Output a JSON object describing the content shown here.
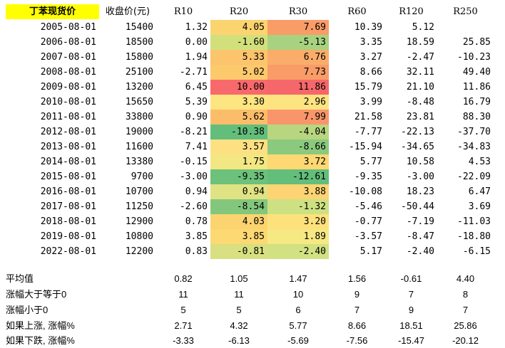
{
  "header": {
    "title": "丁苯现货价",
    "price_label": "收盘价(元)",
    "columns": [
      "R10",
      "R20",
      "R30",
      "R60",
      "R120",
      "R250"
    ]
  },
  "rows": [
    {
      "date": "2005-08-01",
      "price": "15400",
      "vals": [
        "1.32",
        "4.05",
        "7.69",
        "10.39",
        "5.12",
        ""
      ]
    },
    {
      "date": "2006-08-01",
      "price": "18500",
      "vals": [
        "0.00",
        "-1.60",
        "-5.13",
        "3.35",
        "18.59",
        "25.85"
      ]
    },
    {
      "date": "2007-08-01",
      "price": "15800",
      "vals": [
        "1.94",
        "5.33",
        "6.76",
        "3.27",
        "-2.47",
        "-10.23"
      ]
    },
    {
      "date": "2008-08-01",
      "price": "25100",
      "vals": [
        "-2.71",
        "5.02",
        "7.73",
        "8.66",
        "32.11",
        "49.40"
      ]
    },
    {
      "date": "2009-08-01",
      "price": "13200",
      "vals": [
        "6.45",
        "10.00",
        "11.86",
        "15.79",
        "21.10",
        "11.86"
      ]
    },
    {
      "date": "2010-08-01",
      "price": "15650",
      "vals": [
        "5.39",
        "3.30",
        "2.96",
        "3.99",
        "-8.48",
        "16.79"
      ]
    },
    {
      "date": "2011-08-01",
      "price": "33800",
      "vals": [
        "0.90",
        "5.62",
        "7.99",
        "21.58",
        "23.81",
        "88.30"
      ]
    },
    {
      "date": "2012-08-01",
      "price": "19000",
      "vals": [
        "-8.21",
        "-10.38",
        "-4.04",
        "-7.77",
        "-22.13",
        "-37.70"
      ]
    },
    {
      "date": "2013-08-01",
      "price": "11600",
      "vals": [
        "7.41",
        "3.57",
        "-8.66",
        "-15.94",
        "-34.65",
        "-34.83"
      ]
    },
    {
      "date": "2014-08-01",
      "price": "13380",
      "vals": [
        "-0.15",
        "1.75",
        "3.72",
        "5.77",
        "10.58",
        "4.53"
      ]
    },
    {
      "date": "2015-08-01",
      "price": "9700",
      "vals": [
        "-3.00",
        "-9.35",
        "-12.61",
        "-9.35",
        "-3.00",
        "-22.09"
      ]
    },
    {
      "date": "2016-08-01",
      "price": "10700",
      "vals": [
        "0.94",
        "0.94",
        "3.88",
        "-10.08",
        "18.23",
        "6.47"
      ]
    },
    {
      "date": "2017-08-01",
      "price": "11250",
      "vals": [
        "-2.60",
        "-8.54",
        "-1.32",
        "-5.46",
        "-50.44",
        "3.69"
      ]
    },
    {
      "date": "2018-08-01",
      "price": "12900",
      "vals": [
        "0.78",
        "4.03",
        "3.20",
        "-0.77",
        "-7.19",
        "-11.03"
      ]
    },
    {
      "date": "2019-08-01",
      "price": "10800",
      "vals": [
        "3.85",
        "3.85",
        "1.89",
        "-3.57",
        "-8.47",
        "-18.80"
      ]
    },
    {
      "date": "2022-08-01",
      "price": "12200",
      "vals": [
        "0.83",
        "-0.81",
        "-2.40",
        "5.17",
        "-2.40",
        "-6.15"
      ]
    }
  ],
  "heat_colors": {
    "r20": [
      "#fcd46f",
      "#d2e07c",
      "#fcc46c",
      "#fcc96d",
      "#f8696b",
      "#fde582",
      "#fbbd6a",
      "#63be7b",
      "#fde081",
      "#f2e783",
      "#6cc17b",
      "#e0e383",
      "#83c77d",
      "#fcd46f",
      "#fcd972",
      "#d8e081"
    ],
    "r30": [
      "#f99c68",
      "#a8d27f",
      "#faad6a",
      "#f99c68",
      "#f5676b",
      "#fde481",
      "#f9956a",
      "#b8d680",
      "#8bc97e",
      "#fdd873",
      "#63be7b",
      "#fdd473",
      "#cde182",
      "#fde27c",
      "#f6e883",
      "#d2e182"
    ]
  },
  "summary": [
    {
      "label": "平均值",
      "vals": [
        "0.82",
        "1.05",
        "1.47",
        "1.56",
        "-0.61",
        "4.40"
      ]
    },
    {
      "label": "涨幅大于等于0",
      "vals": [
        "11",
        "11",
        "10",
        "9",
        "7",
        "8"
      ]
    },
    {
      "label": "涨幅小于0",
      "vals": [
        "5",
        "5",
        "6",
        "7",
        "9",
        "7"
      ]
    },
    {
      "label": "如果上涨, 涨幅%",
      "vals": [
        "2.71",
        "4.32",
        "5.77",
        "8.66",
        "18.51",
        "25.86"
      ]
    },
    {
      "label": "如果下跌, 涨幅%",
      "vals": [
        "-3.33",
        "-6.13",
        "-5.69",
        "-7.56",
        "-15.47",
        "-20.12"
      ]
    }
  ]
}
